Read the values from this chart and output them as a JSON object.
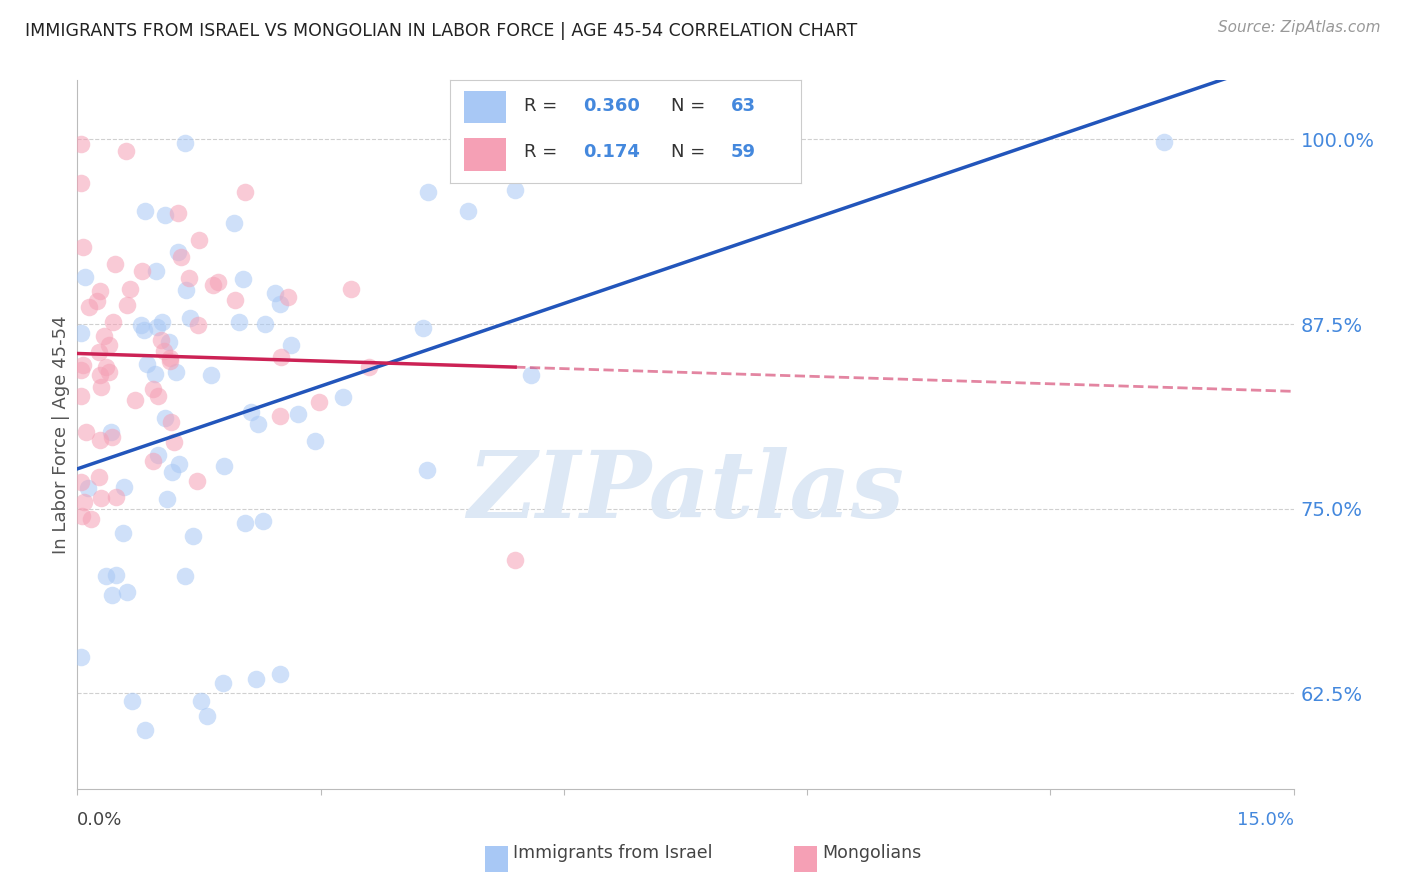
{
  "title": "IMMIGRANTS FROM ISRAEL VS MONGOLIAN IN LABOR FORCE | AGE 45-54 CORRELATION CHART",
  "source": "Source: ZipAtlas.com",
  "ylabel": "In Labor Force | Age 45-54",
  "ytick_vals": [
    62.5,
    75.0,
    87.5,
    100.0
  ],
  "ytick_labels": [
    "62.5%",
    "75.0%",
    "87.5%",
    "100.0%"
  ],
  "xmin": 0.0,
  "xmax": 15.0,
  "ymin": 56.0,
  "ymax": 104.0,
  "israel_color": "#a8c8f5",
  "mongolia_color": "#f5a0b5",
  "israel_line_color": "#2255bb",
  "mongolia_line_color": "#cc2255",
  "israel_R": 0.36,
  "mongolia_R": 0.174,
  "israel_N": 63,
  "mongolia_N": 59,
  "watermark_text": "ZIPatlas",
  "background_color": "#ffffff",
  "grid_color": "#d0d0d0",
  "title_color": "#222222",
  "tick_color": "#4488dd",
  "right_tick_color": "#4488dd",
  "legend_box_color": "#4488dd"
}
